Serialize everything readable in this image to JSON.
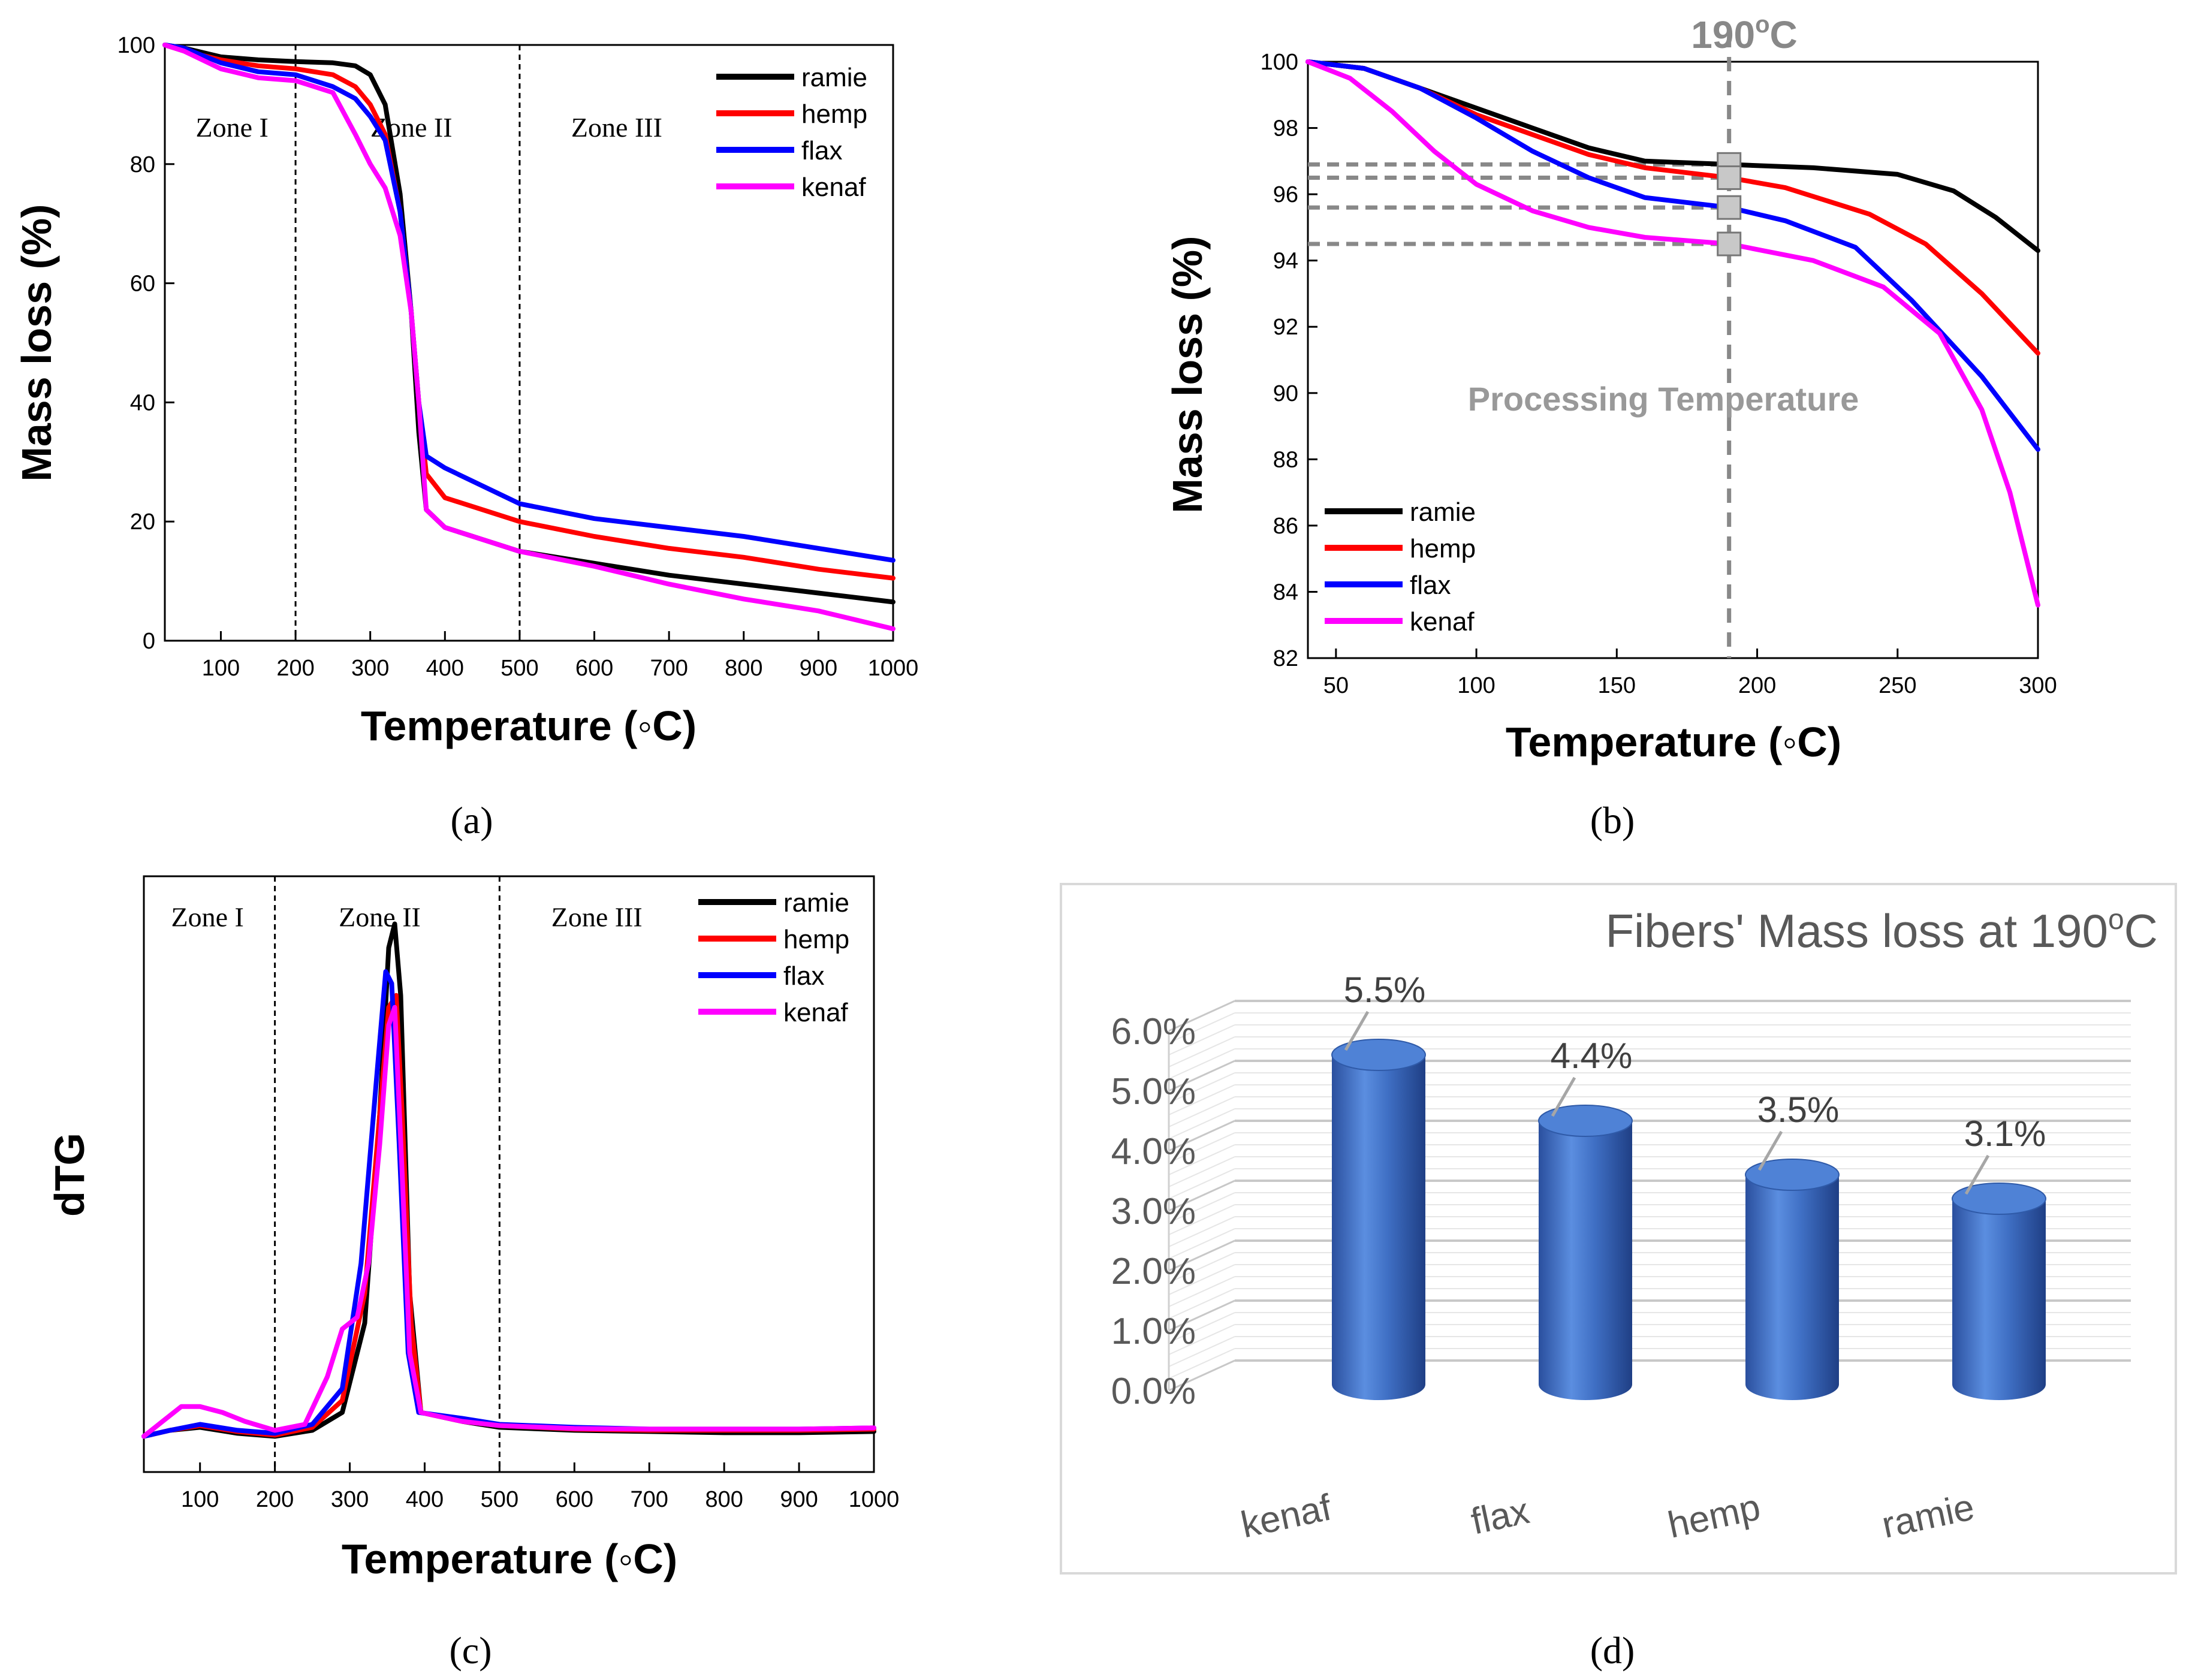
{
  "chart_data": [
    {
      "panel": "a",
      "type": "line",
      "caption": "(a)",
      "xlabel": "Temperature (◦C)",
      "ylabel": "Mass loss (%)",
      "xlim": [
        25,
        1000
      ],
      "ylim": [
        0,
        100
      ],
      "xticks": [
        100,
        200,
        300,
        400,
        500,
        600,
        700,
        800,
        900,
        1000
      ],
      "yticks": [
        0,
        20,
        40,
        60,
        80,
        100
      ],
      "zone_lines": [
        200,
        500
      ],
      "zones": [
        {
          "label": "Zone I",
          "x": 115
        },
        {
          "label": "Zone II",
          "x": 355
        },
        {
          "label": "Zone III",
          "x": 630
        }
      ],
      "zone_y": 86,
      "legend": "top-right",
      "series": [
        {
          "name": "ramie",
          "color": "#000000",
          "points": [
            [
              25,
              100
            ],
            [
              50,
              99.5
            ],
            [
              100,
              98
            ],
            [
              150,
              97.5
            ],
            [
              200,
              97.2
            ],
            [
              250,
              97
            ],
            [
              280,
              96.5
            ],
            [
              300,
              95
            ],
            [
              320,
              90
            ],
            [
              340,
              75
            ],
            [
              355,
              55
            ],
            [
              365,
              35
            ],
            [
              375,
              22
            ],
            [
              400,
              19
            ],
            [
              450,
              17
            ],
            [
              500,
              15
            ],
            [
              600,
              13
            ],
            [
              700,
              11
            ],
            [
              800,
              9.5
            ],
            [
              900,
              8
            ],
            [
              1000,
              6.5
            ]
          ]
        },
        {
          "name": "hemp",
          "color": "#ff0000",
          "points": [
            [
              25,
              100
            ],
            [
              50,
              99
            ],
            [
              100,
              97.5
            ],
            [
              150,
              96.5
            ],
            [
              200,
              96
            ],
            [
              250,
              95
            ],
            [
              280,
              93
            ],
            [
              300,
              90
            ],
            [
              320,
              85
            ],
            [
              340,
              72
            ],
            [
              355,
              55
            ],
            [
              365,
              40
            ],
            [
              375,
              28
            ],
            [
              400,
              24
            ],
            [
              500,
              20
            ],
            [
              600,
              17.5
            ],
            [
              700,
              15.5
            ],
            [
              800,
              14
            ],
            [
              900,
              12
            ],
            [
              1000,
              10.5
            ]
          ]
        },
        {
          "name": "flax",
          "color": "#0000ff",
          "points": [
            [
              25,
              100
            ],
            [
              50,
              99.5
            ],
            [
              100,
              97
            ],
            [
              150,
              95.5
            ],
            [
              200,
              95
            ],
            [
              250,
              93
            ],
            [
              280,
              91
            ],
            [
              300,
              88
            ],
            [
              320,
              84
            ],
            [
              340,
              72
            ],
            [
              355,
              55
            ],
            [
              365,
              40
            ],
            [
              375,
              31
            ],
            [
              400,
              29
            ],
            [
              500,
              23
            ],
            [
              600,
              20.5
            ],
            [
              700,
              19
            ],
            [
              800,
              17.5
            ],
            [
              900,
              15.5
            ],
            [
              1000,
              13.5
            ]
          ]
        },
        {
          "name": "kenaf",
          "color": "#ff00ff",
          "points": [
            [
              25,
              100
            ],
            [
              50,
              99
            ],
            [
              100,
              96
            ],
            [
              150,
              94.5
            ],
            [
              200,
              94
            ],
            [
              250,
              92
            ],
            [
              280,
              85
            ],
            [
              300,
              80
            ],
            [
              320,
              76
            ],
            [
              340,
              68
            ],
            [
              355,
              55
            ],
            [
              365,
              40
            ],
            [
              375,
              22
            ],
            [
              400,
              19
            ],
            [
              500,
              15
            ],
            [
              600,
              12.5
            ],
            [
              700,
              9.5
            ],
            [
              800,
              7
            ],
            [
              900,
              5
            ],
            [
              1000,
              2
            ]
          ]
        }
      ]
    },
    {
      "panel": "b",
      "type": "line",
      "caption": "(b)",
      "xlabel": "Temperature (◦C)",
      "ylabel": "Mass loss (%)",
      "xlim": [
        40,
        300
      ],
      "ylim": [
        82,
        100
      ],
      "xticks": [
        50,
        100,
        150,
        200,
        250,
        300
      ],
      "yticks": [
        82,
        84,
        86,
        88,
        90,
        92,
        94,
        96,
        98,
        100
      ],
      "marker_temperature": 190,
      "marker_label": "190",
      "marker_label_sup": "o",
      "marker_label_unit": "C",
      "annotation": "Processing Temperature",
      "reference_levels": [
        96.9,
        96.5,
        95.6,
        94.5
      ],
      "legend": "bottom-left",
      "series": [
        {
          "name": "ramie",
          "color": "#000000",
          "points": [
            [
              40,
              100
            ],
            [
              60,
              99.8
            ],
            [
              80,
              99.2
            ],
            [
              100,
              98.6
            ],
            [
              120,
              98
            ],
            [
              140,
              97.4
            ],
            [
              160,
              97
            ],
            [
              190,
              96.9
            ],
            [
              220,
              96.8
            ],
            [
              250,
              96.6
            ],
            [
              270,
              96.1
            ],
            [
              285,
              95.3
            ],
            [
              300,
              94.3
            ]
          ]
        },
        {
          "name": "hemp",
          "color": "#ff0000",
          "points": [
            [
              40,
              100
            ],
            [
              60,
              99.8
            ],
            [
              80,
              99.2
            ],
            [
              100,
              98.4
            ],
            [
              120,
              97.8
            ],
            [
              140,
              97.2
            ],
            [
              160,
              96.8
            ],
            [
              190,
              96.5
            ],
            [
              210,
              96.2
            ],
            [
              240,
              95.4
            ],
            [
              260,
              94.5
            ],
            [
              280,
              93
            ],
            [
              300,
              91.2
            ]
          ]
        },
        {
          "name": "flax",
          "color": "#0000ff",
          "points": [
            [
              40,
              100
            ],
            [
              60,
              99.8
            ],
            [
              80,
              99.2
            ],
            [
              100,
              98.3
            ],
            [
              120,
              97.3
            ],
            [
              140,
              96.5
            ],
            [
              160,
              95.9
            ],
            [
              190,
              95.6
            ],
            [
              210,
              95.2
            ],
            [
              235,
              94.4
            ],
            [
              255,
              92.8
            ],
            [
              280,
              90.5
            ],
            [
              300,
              88.3
            ]
          ]
        },
        {
          "name": "kenaf",
          "color": "#ff00ff",
          "points": [
            [
              40,
              100
            ],
            [
              55,
              99.5
            ],
            [
              70,
              98.5
            ],
            [
              85,
              97.3
            ],
            [
              100,
              96.3
            ],
            [
              120,
              95.5
            ],
            [
              140,
              95
            ],
            [
              160,
              94.7
            ],
            [
              190,
              94.5
            ],
            [
              220,
              94
            ],
            [
              245,
              93.2
            ],
            [
              265,
              91.8
            ],
            [
              280,
              89.5
            ],
            [
              290,
              87
            ],
            [
              300,
              83.6
            ]
          ]
        }
      ]
    },
    {
      "panel": "c",
      "type": "line",
      "caption": "(c)",
      "xlabel": "Temperature (◦C)",
      "ylabel": "dTG",
      "xlim": [
        25,
        1000
      ],
      "ylim": [
        0,
        1
      ],
      "xticks": [
        100,
        200,
        300,
        400,
        500,
        600,
        700,
        800,
        900,
        1000
      ],
      "zone_lines": [
        200,
        500
      ],
      "zones": [
        {
          "label": "Zone I",
          "x": 110
        },
        {
          "label": "Zone II",
          "x": 340
        },
        {
          "label": "Zone III",
          "x": 630
        }
      ],
      "zone_y": 0.93,
      "legend": "top-right",
      "series": [
        {
          "name": "ramie",
          "color": "#000000",
          "points": [
            [
              25,
              0.06
            ],
            [
              60,
              0.07
            ],
            [
              100,
              0.075
            ],
            [
              150,
              0.065
            ],
            [
              200,
              0.06
            ],
            [
              250,
              0.07
            ],
            [
              290,
              0.1
            ],
            [
              320,
              0.25
            ],
            [
              340,
              0.6
            ],
            [
              352,
              0.88
            ],
            [
              360,
              0.92
            ],
            [
              368,
              0.8
            ],
            [
              380,
              0.3
            ],
            [
              395,
              0.1
            ],
            [
              450,
              0.085
            ],
            [
              500,
              0.075
            ],
            [
              600,
              0.07
            ],
            [
              700,
              0.068
            ],
            [
              800,
              0.066
            ],
            [
              900,
              0.066
            ],
            [
              1000,
              0.068
            ]
          ]
        },
        {
          "name": "hemp",
          "color": "#ff0000",
          "points": [
            [
              25,
              0.06
            ],
            [
              60,
              0.07
            ],
            [
              100,
              0.078
            ],
            [
              150,
              0.068
            ],
            [
              200,
              0.062
            ],
            [
              250,
              0.075
            ],
            [
              290,
              0.12
            ],
            [
              320,
              0.3
            ],
            [
              340,
              0.6
            ],
            [
              352,
              0.78
            ],
            [
              362,
              0.8
            ],
            [
              370,
              0.6
            ],
            [
              382,
              0.25
            ],
            [
              395,
              0.1
            ],
            [
              450,
              0.085
            ],
            [
              500,
              0.078
            ],
            [
              600,
              0.072
            ],
            [
              700,
              0.07
            ],
            [
              800,
              0.07
            ],
            [
              900,
              0.07
            ],
            [
              1000,
              0.072
            ]
          ]
        },
        {
          "name": "flax",
          "color": "#0000ff",
          "points": [
            [
              25,
              0.06
            ],
            [
              60,
              0.07
            ],
            [
              100,
              0.08
            ],
            [
              150,
              0.07
            ],
            [
              200,
              0.065
            ],
            [
              250,
              0.08
            ],
            [
              290,
              0.14
            ],
            [
              315,
              0.35
            ],
            [
              335,
              0.65
            ],
            [
              348,
              0.84
            ],
            [
              356,
              0.82
            ],
            [
              366,
              0.55
            ],
            [
              378,
              0.2
            ],
            [
              392,
              0.1
            ],
            [
              450,
              0.09
            ],
            [
              500,
              0.08
            ],
            [
              600,
              0.075
            ],
            [
              700,
              0.072
            ],
            [
              800,
              0.072
            ],
            [
              900,
              0.072
            ],
            [
              1000,
              0.074
            ]
          ]
        },
        {
          "name": "kenaf",
          "color": "#ff00ff",
          "points": [
            [
              25,
              0.06
            ],
            [
              50,
              0.085
            ],
            [
              75,
              0.11
            ],
            [
              100,
              0.11
            ],
            [
              130,
              0.1
            ],
            [
              160,
              0.085
            ],
            [
              200,
              0.07
            ],
            [
              240,
              0.08
            ],
            [
              270,
              0.16
            ],
            [
              290,
              0.24
            ],
            [
              310,
              0.26
            ],
            [
              325,
              0.35
            ],
            [
              340,
              0.55
            ],
            [
              352,
              0.75
            ],
            [
              360,
              0.78
            ],
            [
              370,
              0.5
            ],
            [
              380,
              0.2
            ],
            [
              395,
              0.1
            ],
            [
              450,
              0.085
            ],
            [
              500,
              0.078
            ],
            [
              600,
              0.073
            ],
            [
              700,
              0.072
            ],
            [
              800,
              0.072
            ],
            [
              900,
              0.072
            ],
            [
              1000,
              0.074
            ]
          ]
        }
      ]
    },
    {
      "panel": "d",
      "type": "bar",
      "caption": "(d)",
      "title": "Fibers' Mass loss at 190",
      "title_sup": "o",
      "title_unit": "C",
      "categories": [
        "kenaf",
        "flax",
        "hemp",
        "ramie"
      ],
      "values": [
        5.5,
        4.4,
        3.5,
        3.1
      ],
      "data_labels": [
        "5.5%",
        "4.4%",
        "3.5%",
        "3.1%"
      ],
      "ylim": [
        0,
        6
      ],
      "yticks": [
        "0.0%",
        "1.0%",
        "2.0%",
        "3.0%",
        "4.0%",
        "5.0%",
        "6.0%"
      ],
      "bar_color": "#4472c4"
    }
  ]
}
